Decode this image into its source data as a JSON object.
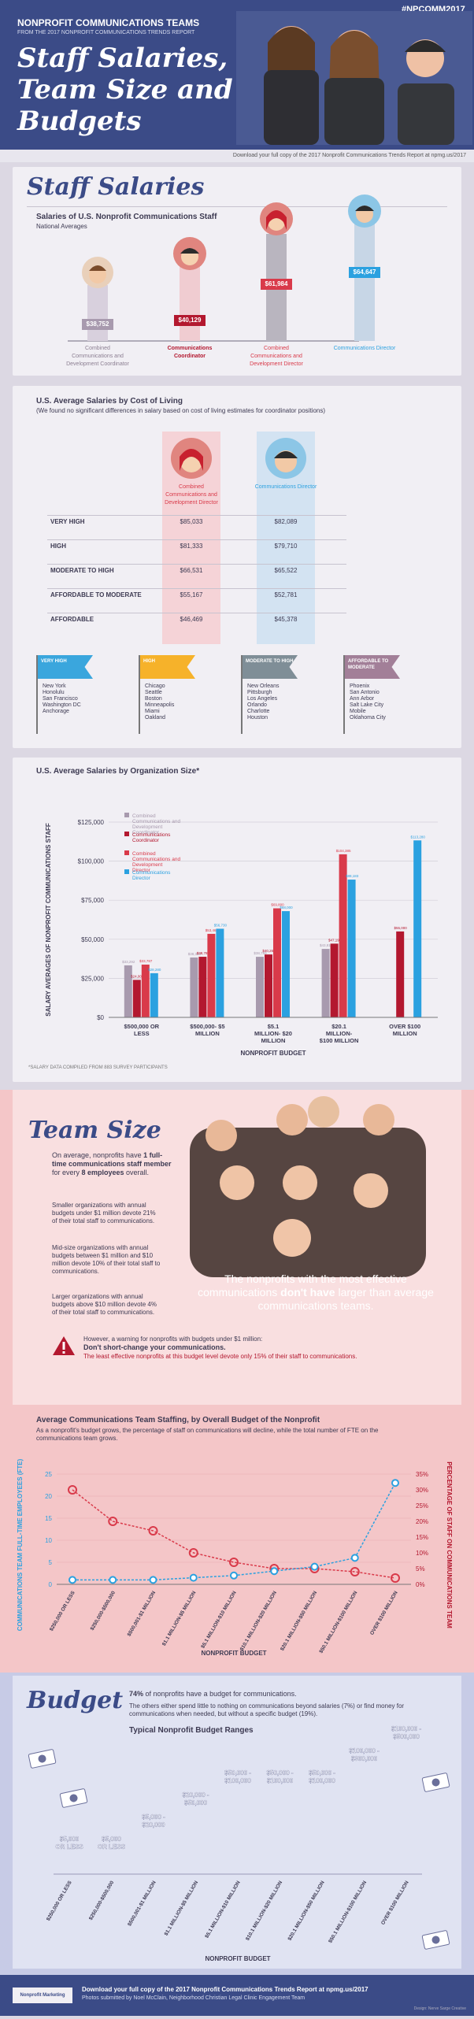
{
  "header": {
    "title": "NONPROFIT COMMUNICATIONS TEAMS",
    "subtitle": "FROM THE 2017 NONPROFIT COMMUNICATIONS TRENDS REPORT",
    "hashtag": "#NPCOMM2017",
    "hero_l1": "Staff Salaries,",
    "hero_l2": "Team Size and",
    "hero_l3": "Budgets",
    "download": "Download your full copy of the 2017 Nonprofit Communications Trends Report at npmg.us/2017"
  },
  "salaries": {
    "heading": "Staff Salaries",
    "chart_title": "Salaries of U.S. Nonprofit Communications Staff",
    "chart_sub": "National Averages",
    "people": [
      {
        "value": "$38,752",
        "label": "Combined Communications and Development Coordinator"
      },
      {
        "value": "$40,129",
        "label": "Communications Coordinator"
      },
      {
        "value": "$61,984",
        "label": "Combined Communications and Development Director"
      },
      {
        "value": "$64,647",
        "label": "Communications Director"
      }
    ]
  },
  "col": {
    "title": "U.S. Average Salaries by Cost of Living",
    "sub": "(We found no significant differences in salary based on cost of living estimates for coordinator positions)",
    "head_a": "Combined Communications and Development Director",
    "head_b": "Communications Director",
    "rows": [
      {
        "label": "VERY HIGH",
        "a": "$85,033",
        "b": "$82,089"
      },
      {
        "label": "HIGH",
        "a": "$81,333",
        "b": "$79,710"
      },
      {
        "label": "MODERATE TO HIGH",
        "a": "$66,531",
        "b": "$65,522"
      },
      {
        "label": "AFFORDABLE TO MODERATE",
        "a": "$55,167",
        "b": "$52,781"
      },
      {
        "label": "AFFORDABLE",
        "a": "$46,469",
        "b": "$45,378"
      }
    ],
    "flags": [
      {
        "label": "VERY HIGH",
        "cities": "New York\nHonolulu\nSan Francisco\nWashington DC\nAnchorage",
        "color": "#3aa6dd"
      },
      {
        "label": "HIGH",
        "cities": "Chicago\nSeattle\nBoston\nMinneapolis\nMiami\nOakland",
        "color": "#f6b22a"
      },
      {
        "label": "MODERATE TO HIGH",
        "cities": "New Orleans\nPittsburgh\nLos Angeles\nOrlando\nCharlotte\nHouston",
        "color": "#7f8e97"
      },
      {
        "label": "AFFORDABLE TO MODERATE",
        "cities": "Phoenix\nSan Antonio\nAnn Arbor\nSalt Lake City\nMobile\nOklahoma City",
        "color": "#a27f98"
      }
    ]
  },
  "org": {
    "title": "U.S. Average Salaries by Organization Size*",
    "footnote": "*SALARY DATA COMPILED FROM 883 SURVEY PARTICIPANTS"
  },
  "chart_data": [
    {
      "type": "bar",
      "title": "U.S. Average Salaries by Organization Size*",
      "xlabel": "NONPROFIT BUDGET",
      "ylabel": "SALARY AVERAGES OF NONPROFIT COMMUNICATIONS STAFF",
      "ylim": [
        0,
        125000
      ],
      "yticks": [
        "$0",
        "$25,000",
        "$50,000",
        "$75,000",
        "$100,000",
        "$125,000"
      ],
      "categories": [
        "$500,000 OR LESS",
        "$500,000- $5 MILLION",
        "$5.1 MILLION- $20 MILLION",
        "$20.1 MILLION- $100 MILLION",
        "OVER $100 MILLION"
      ],
      "series": [
        {
          "name": "Combined Communications and Development Coordinator",
          "color": "#a89aae",
          "values": [
            33292,
            38320,
            38759,
            43810,
            null
          ]
        },
        {
          "name": "Communications Coordinator",
          "color": "#b3182f",
          "values": [
            24000,
            38787,
            40260,
            47195,
            55000
          ]
        },
        {
          "name": "Combined Communications and Development Director",
          "color": "#d93a4a",
          "values": [
            33787,
            53466,
            69800,
            104385,
            null
          ]
        },
        {
          "name": "Communications Director",
          "color": "#2ba1e0",
          "values": [
            28280,
            56730,
            68000,
            88183,
            113280
          ]
        }
      ],
      "labels": [
        [
          "$33,292",
          "$24,000",
          "$33,787",
          "$28,280"
        ],
        [
          "$38,320",
          "$38,787",
          "$53,466",
          "$56,730"
        ],
        [
          "$38,759",
          "$40,260",
          "$69,800",
          "$68,000"
        ],
        [
          "$43,810",
          "$47,195",
          "$104,385",
          "$88,183"
        ],
        [
          "",
          "$55,000",
          "",
          "$113,280"
        ]
      ]
    },
    {
      "type": "line",
      "title": "Average Communications Team Staffing, by Overall Budget of the Nonprofit",
      "xlabel": "NONPROFIT BUDGET",
      "ylabel": "COMMUNICATIONS TEAM FULL-TIME EMPLOYEES (FTE)",
      "ylabel2": "PERCENTAGE OF STAFF ON COMMUNICATIONS TEAM",
      "categories": [
        "$250,000 OR LESS",
        "$250,000-$500,000",
        "$500,001-$1 MILLION",
        "$1.1 MILLION-$5 MILLION",
        "$5.1 MILLION-$10 MILLION",
        "$10.1 MILLION-$20 MILLION",
        "$20.1 MILLION-$50 MILLION",
        "$50.1 MILLION-$100 MILLION",
        "OVER $100 MILLION"
      ],
      "yticks": [
        "0",
        "5",
        "10",
        "15",
        "20",
        "25"
      ],
      "y2ticks": [
        "0%",
        "5%",
        "10%",
        "15%",
        "20%",
        "25%",
        "30%",
        "35%"
      ],
      "fte": [
        1,
        1,
        1,
        1.5,
        2,
        3,
        4,
        6,
        23
      ],
      "pct": [
        30,
        20,
        17,
        10,
        7,
        5,
        5,
        4,
        2
      ]
    },
    {
      "type": "bar",
      "title": "Typical Nonprofit Budget Ranges",
      "xlabel": "NONPROFIT BUDGET",
      "categories": [
        "$250,000 OR LESS",
        "$250,000-$500,000",
        "$500,001-$1 MILLION",
        "$1.1 MILLION-$5 MILLION",
        "$5.1 MILLION-$10 MILLION",
        "$10.1 MILLION-$20 MILLION",
        "$20.1 MILLION-$50 MILLION",
        "$50.1 MILLION-$100 MILLION",
        "OVER $100 MILLION"
      ],
      "labels": [
        "$5,000 OR LESS",
        "$5,000 OR LESS",
        "$5,000 - $20,000",
        "$20,000 - $50,000",
        "$50,000 - $100,000",
        "$50,000 - $100,000",
        "$50,000 - $100,000",
        "$100,000 - $300,000",
        "$100,000 - $500,000"
      ],
      "level": [
        1,
        1,
        2,
        3,
        4,
        4,
        4,
        5,
        6
      ]
    }
  ],
  "team": {
    "heading": "Team Size",
    "p1a": "On average, nonprofits have ",
    "p1b": "1 full-time communications staff member",
    "p1c": " for every ",
    "p1d": "8 employees",
    "p1e": " overall.",
    "p2": "Smaller organizations with annual budgets under $1 million devote 21% of their total staff to communications.",
    "p3": "Mid-size organizations with annual budgets between $1 million and $10 million devote 10% of their total staff to communications.",
    "p4": "Larger organizations with annual budgets above $10 million devote 4% of their total staff to communications.",
    "quote_a": "The nonprofits with the most effective communications ",
    "quote_b": "don't have",
    "quote_c": " larger than average communications teams.",
    "warn1": "However, a warning for nonprofits with budgets under $1 million:",
    "warn2": "Don't short-change your communications.",
    "warn3": "The least effective nonprofits at this budget level devote only 15% of their staff to communications.",
    "staff_title": "Average Communications Team Staffing, by Overall Budget of the Nonprofit",
    "staff_sub": "As a nonprofit's budget grows, the percentage of staff on communications will decline, while the total number of FTE on the communications team grows."
  },
  "budget": {
    "heading": "Budget",
    "p1a": "74%",
    "p1b": " of nonprofits have a budget for communications.",
    "p2": "The others either spend little to nothing on communications beyond salaries (7%) or find money for communications when needed, but without a specific budget (19%).",
    "chart_title": "Typical Nonprofit Budget Ranges"
  },
  "footer": {
    "logo": "Nonprofit Marketing Guide.com",
    "l1": "Download your full copy of the 2017 Nonprofit Communications Trends Report at npmg.us/2017",
    "l2": "Photos submitted by Noel McClain, Neighborhood Christian Legal Clinic Engagement Team",
    "credit": "Design: Nerve Sarge Creative"
  }
}
